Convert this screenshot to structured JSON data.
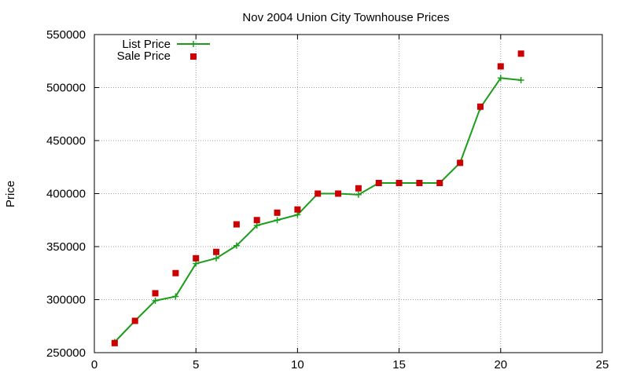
{
  "chart_data": {
    "type": "line",
    "title": "Nov 2004 Union City Townhouse Prices",
    "xlabel": "",
    "ylabel": "Price",
    "xlim": [
      0,
      25
    ],
    "ylim": [
      250000,
      550000
    ],
    "x_ticks": [
      0,
      5,
      10,
      15,
      20,
      25
    ],
    "y_ticks": [
      250000,
      300000,
      350000,
      400000,
      450000,
      500000,
      550000
    ],
    "x_tick_labels": [
      "0",
      "5",
      "10",
      "15",
      "20",
      "25"
    ],
    "y_tick_labels": [
      "250000",
      "300000",
      "350000",
      "400000",
      "450000",
      "500000",
      "550000"
    ],
    "grid": true,
    "legend_position": "top-left",
    "series": [
      {
        "name": "List Price",
        "style": "line-with-plus-markers",
        "color": "#1a9e1a",
        "points": [
          [
            1,
            260000
          ],
          [
            2,
            280000
          ],
          [
            3,
            299000
          ],
          [
            4,
            303000
          ],
          [
            5,
            334000
          ],
          [
            6,
            339000
          ],
          [
            7,
            351000
          ],
          [
            8,
            370000
          ],
          [
            9,
            375000
          ],
          [
            10,
            380000
          ],
          [
            11,
            400000
          ],
          [
            12,
            400000
          ],
          [
            13,
            399000
          ],
          [
            14,
            410000
          ],
          [
            15,
            410000
          ],
          [
            16,
            410000
          ],
          [
            17,
            410000
          ],
          [
            18,
            429000
          ],
          [
            19,
            481000
          ],
          [
            20,
            509000
          ],
          [
            21,
            507000
          ]
        ]
      },
      {
        "name": "Sale Price",
        "style": "square-markers",
        "color": "#cc0000",
        "points": [
          [
            1,
            259000
          ],
          [
            2,
            280000
          ],
          [
            3,
            306000
          ],
          [
            4,
            325000
          ],
          [
            5,
            339000
          ],
          [
            6,
            345000
          ],
          [
            7,
            371000
          ],
          [
            8,
            375000
          ],
          [
            9,
            382000
          ],
          [
            10,
            385000
          ],
          [
            11,
            400000
          ],
          [
            12,
            400000
          ],
          [
            13,
            405000
          ],
          [
            14,
            410000
          ],
          [
            15,
            410000
          ],
          [
            16,
            410000
          ],
          [
            17,
            410000
          ],
          [
            18,
            429000
          ],
          [
            19,
            482000
          ],
          [
            20,
            520000
          ],
          [
            21,
            532000
          ]
        ]
      }
    ]
  }
}
